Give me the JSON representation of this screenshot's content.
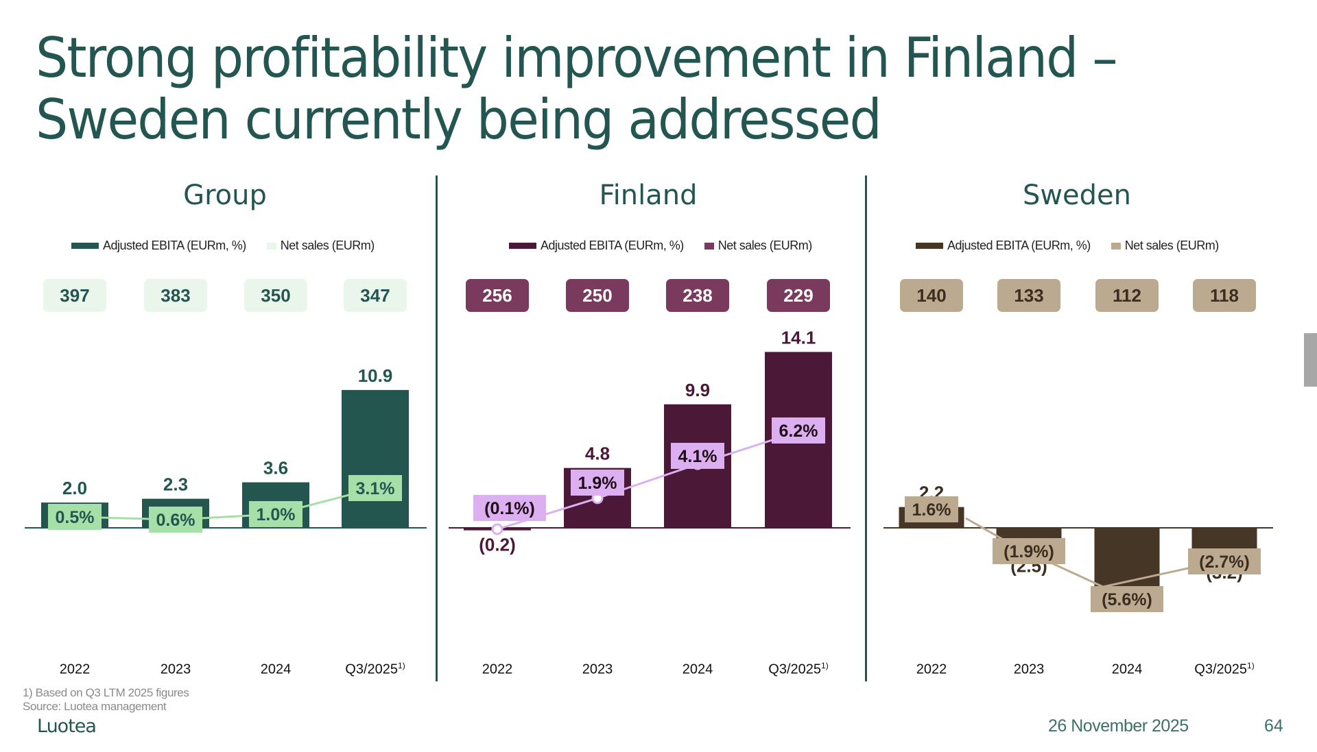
{
  "slide": {
    "title_line1": "Strong profitability improvement in Finland –",
    "title_line2": "Sweden currently being addressed",
    "footnote": "1) Based on Q3 LTM 2025 figures",
    "source": "Source: Luotea management",
    "logo": "Luotea",
    "date": "26 November 2025",
    "page_number": "64"
  },
  "colors": {
    "title": "#235650",
    "group_bar": "#245650",
    "group_label": "#a6dfa7",
    "group_sales_box": "#eaf5ec",
    "group_sales_text": "#245650",
    "finland_bar": "#4b1838",
    "finland_label": "#dcb0f0",
    "finland_sales_box": "#7a3a5d",
    "finland_sales_text": "#ffffff",
    "sweden_bar": "#453626",
    "sweden_label": "#bcaa90",
    "sweden_sales_box": "#bcaa90",
    "sweden_sales_text": "#3b2d20"
  },
  "chart_data": [
    {
      "type": "bar",
      "title": "Group",
      "legend": [
        "Adjusted EBITA (EURm, %)",
        "Net sales (EURm)"
      ],
      "categories": [
        "2022",
        "2023",
        "2024",
        "Q3/2025"
      ],
      "category_superscripts": [
        "",
        "",
        "",
        "1)"
      ],
      "series": [
        {
          "name": "Adjusted EBITA (EURm)",
          "values": [
            2.0,
            2.3,
            3.6,
            10.9
          ],
          "labels": [
            "2.0",
            "2.3",
            "3.6",
            "10.9"
          ]
        },
        {
          "name": "Adjusted EBITA margin (%)",
          "values": [
            0.5,
            0.6,
            1.0,
            3.1
          ],
          "labels": [
            "0.5%",
            "0.6%",
            "1.0%",
            "3.1%"
          ]
        },
        {
          "name": "Net sales (EURm)",
          "values": [
            397,
            383,
            350,
            347
          ],
          "labels": [
            "397",
            "383",
            "350",
            "347"
          ]
        }
      ],
      "legend_position": "top"
    },
    {
      "type": "bar",
      "title": "Finland",
      "legend": [
        "Adjusted EBITA (EURm, %)",
        "Net sales (EURm)"
      ],
      "categories": [
        "2022",
        "2023",
        "2024",
        "Q3/2025"
      ],
      "category_superscripts": [
        "",
        "",
        "",
        "1)"
      ],
      "series": [
        {
          "name": "Adjusted EBITA (EURm)",
          "values": [
            -0.2,
            4.8,
            9.9,
            14.1
          ],
          "labels": [
            "(0.2)",
            "4.8",
            "9.9",
            "14.1"
          ]
        },
        {
          "name": "Adjusted EBITA margin (%)",
          "values": [
            -0.1,
            1.9,
            4.1,
            6.2
          ],
          "labels": [
            "(0.1%)",
            "1.9%",
            "4.1%",
            "6.2%"
          ]
        },
        {
          "name": "Net sales (EURm)",
          "values": [
            256,
            250,
            238,
            229
          ],
          "labels": [
            "256",
            "250",
            "238",
            "229"
          ]
        }
      ],
      "legend_position": "top"
    },
    {
      "type": "bar",
      "title": "Sweden",
      "legend": [
        "Adjusted EBITA (EURm, %)",
        "Net sales (EURm)"
      ],
      "categories": [
        "2022",
        "2023",
        "2024",
        "Q3/2025"
      ],
      "category_superscripts": [
        "",
        "",
        "",
        "1)"
      ],
      "series": [
        {
          "name": "Adjusted EBITA (EURm)",
          "values": [
            2.2,
            -2.5,
            -6.3,
            -3.2
          ],
          "labels": [
            "2.2",
            "(2.5)",
            "(6.3)",
            "(3.2)"
          ]
        },
        {
          "name": "Adjusted EBITA margin (%)",
          "values": [
            1.6,
            -1.9,
            -5.6,
            -2.7
          ],
          "labels": [
            "1.6%",
            "(1.9%)",
            "(5.6%)",
            "(2.7%)"
          ]
        },
        {
          "name": "Net sales (EURm)",
          "values": [
            140,
            133,
            112,
            118
          ],
          "labels": [
            "140",
            "133",
            "112",
            "118"
          ]
        }
      ],
      "legend_position": "top"
    }
  ]
}
